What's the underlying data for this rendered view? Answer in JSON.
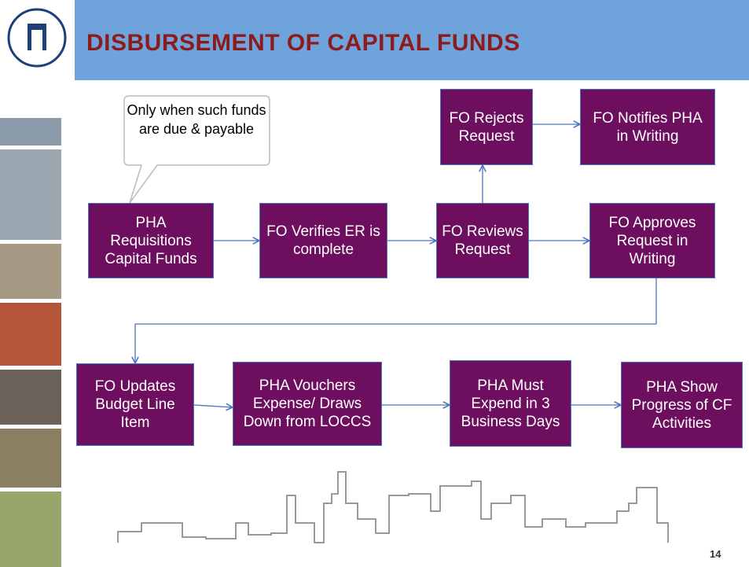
{
  "header": {
    "title": "DISBURSEMENT OF CAPITAL FUNDS"
  },
  "callout": {
    "text": "Only when such funds are due & payable"
  },
  "nodes": [
    {
      "label": "PHA Requisitions Capital Funds"
    },
    {
      "label": "FO Verifies ER is complete"
    },
    {
      "label": "FO Reviews Request"
    },
    {
      "label": "FO Approves Request in Writing"
    },
    {
      "label": "FO Rejects Request"
    },
    {
      "label": "FO Notifies PHA in Writing"
    },
    {
      "label": "FO Updates Budget Line Item"
    },
    {
      "label": "PHA Vouchers Expense/ Draws Down from LOCCS"
    },
    {
      "label": "PHA Must Expend in 3 Business Days"
    },
    {
      "label": "PHA Show Progress of CF Activities"
    }
  ],
  "page_number": "14"
}
